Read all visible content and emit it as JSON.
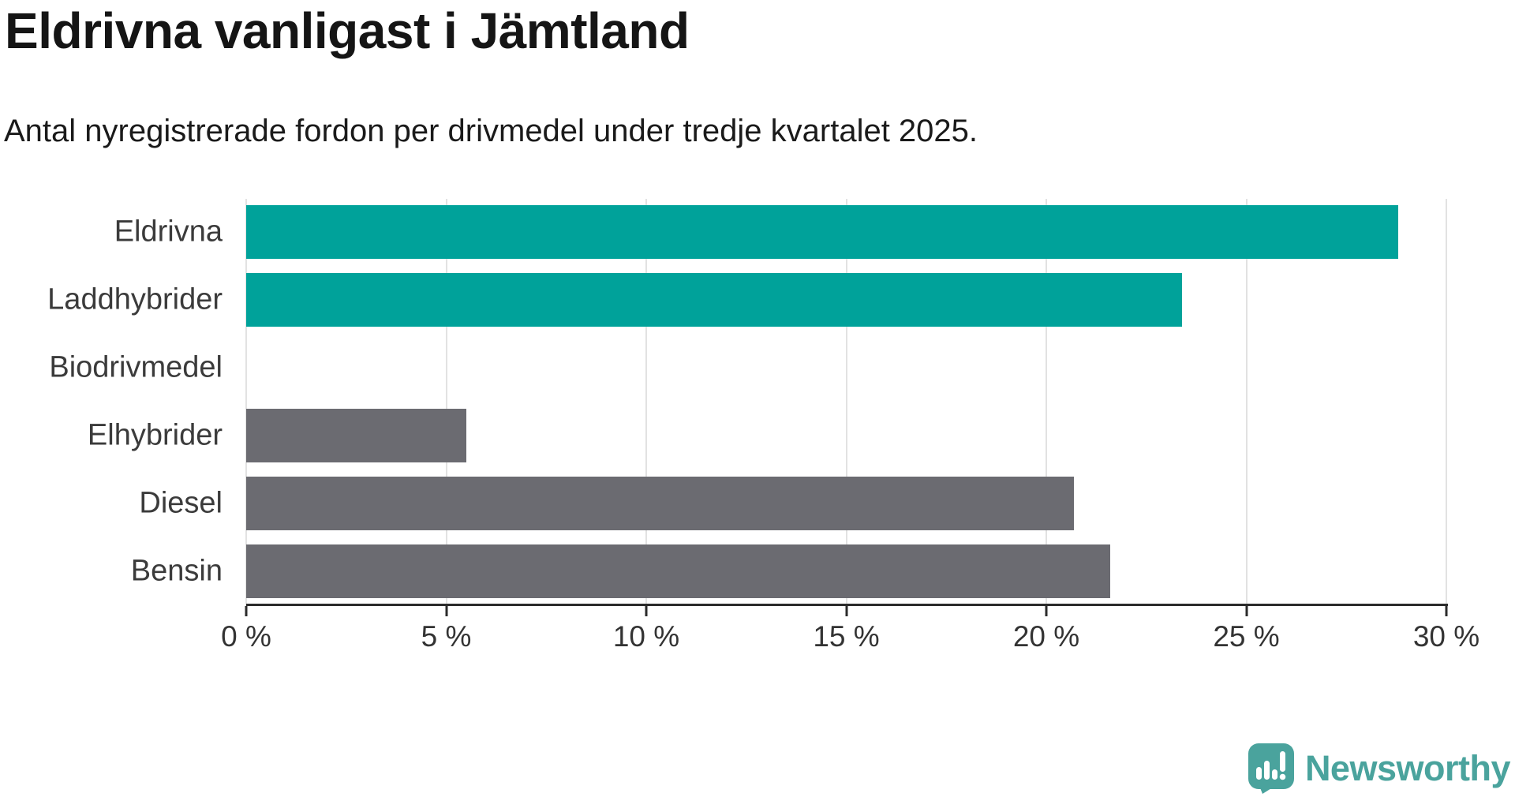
{
  "header": {
    "title": "Eldrivna vanligast i Jämtland",
    "subtitle": "Antal nyregistrerade fordon per drivmedel under tredje kvartalet 2025."
  },
  "chart_data": {
    "type": "bar",
    "orientation": "horizontal",
    "title": "Eldrivna vanligast i Jämtland",
    "subtitle": "Antal nyregistrerade fordon per drivmedel under tredje kvartalet 2025.",
    "categories": [
      "Eldrivna",
      "Laddhybrider",
      "Biodrivmedel",
      "Elhybrider",
      "Diesel",
      "Bensin"
    ],
    "values": [
      28.8,
      23.4,
      0.0,
      5.5,
      20.7,
      21.6
    ],
    "unit": "%",
    "xlim": [
      0,
      30
    ],
    "x_ticks": [
      0,
      5,
      10,
      15,
      20,
      25,
      30
    ],
    "x_tick_labels": [
      "0 %",
      "5 %",
      "10 %",
      "15 %",
      "20 %",
      "25 %",
      "30 %"
    ],
    "bar_colors": [
      "#00a29a",
      "#00a29a",
      "#6b6b71",
      "#6b6b71",
      "#6b6b71",
      "#6b6b71"
    ],
    "highlight_color": "#00a29a",
    "default_color": "#6b6b71",
    "gridline_color": "#e2e2e2",
    "axis_color": "#2b2b2b",
    "grid": true,
    "legend": false
  },
  "footer": {
    "brand": "Newsworthy",
    "brand_color": "#4aa39d",
    "logo_icon": "newsworthy-speech-bubble-chart-icon"
  }
}
